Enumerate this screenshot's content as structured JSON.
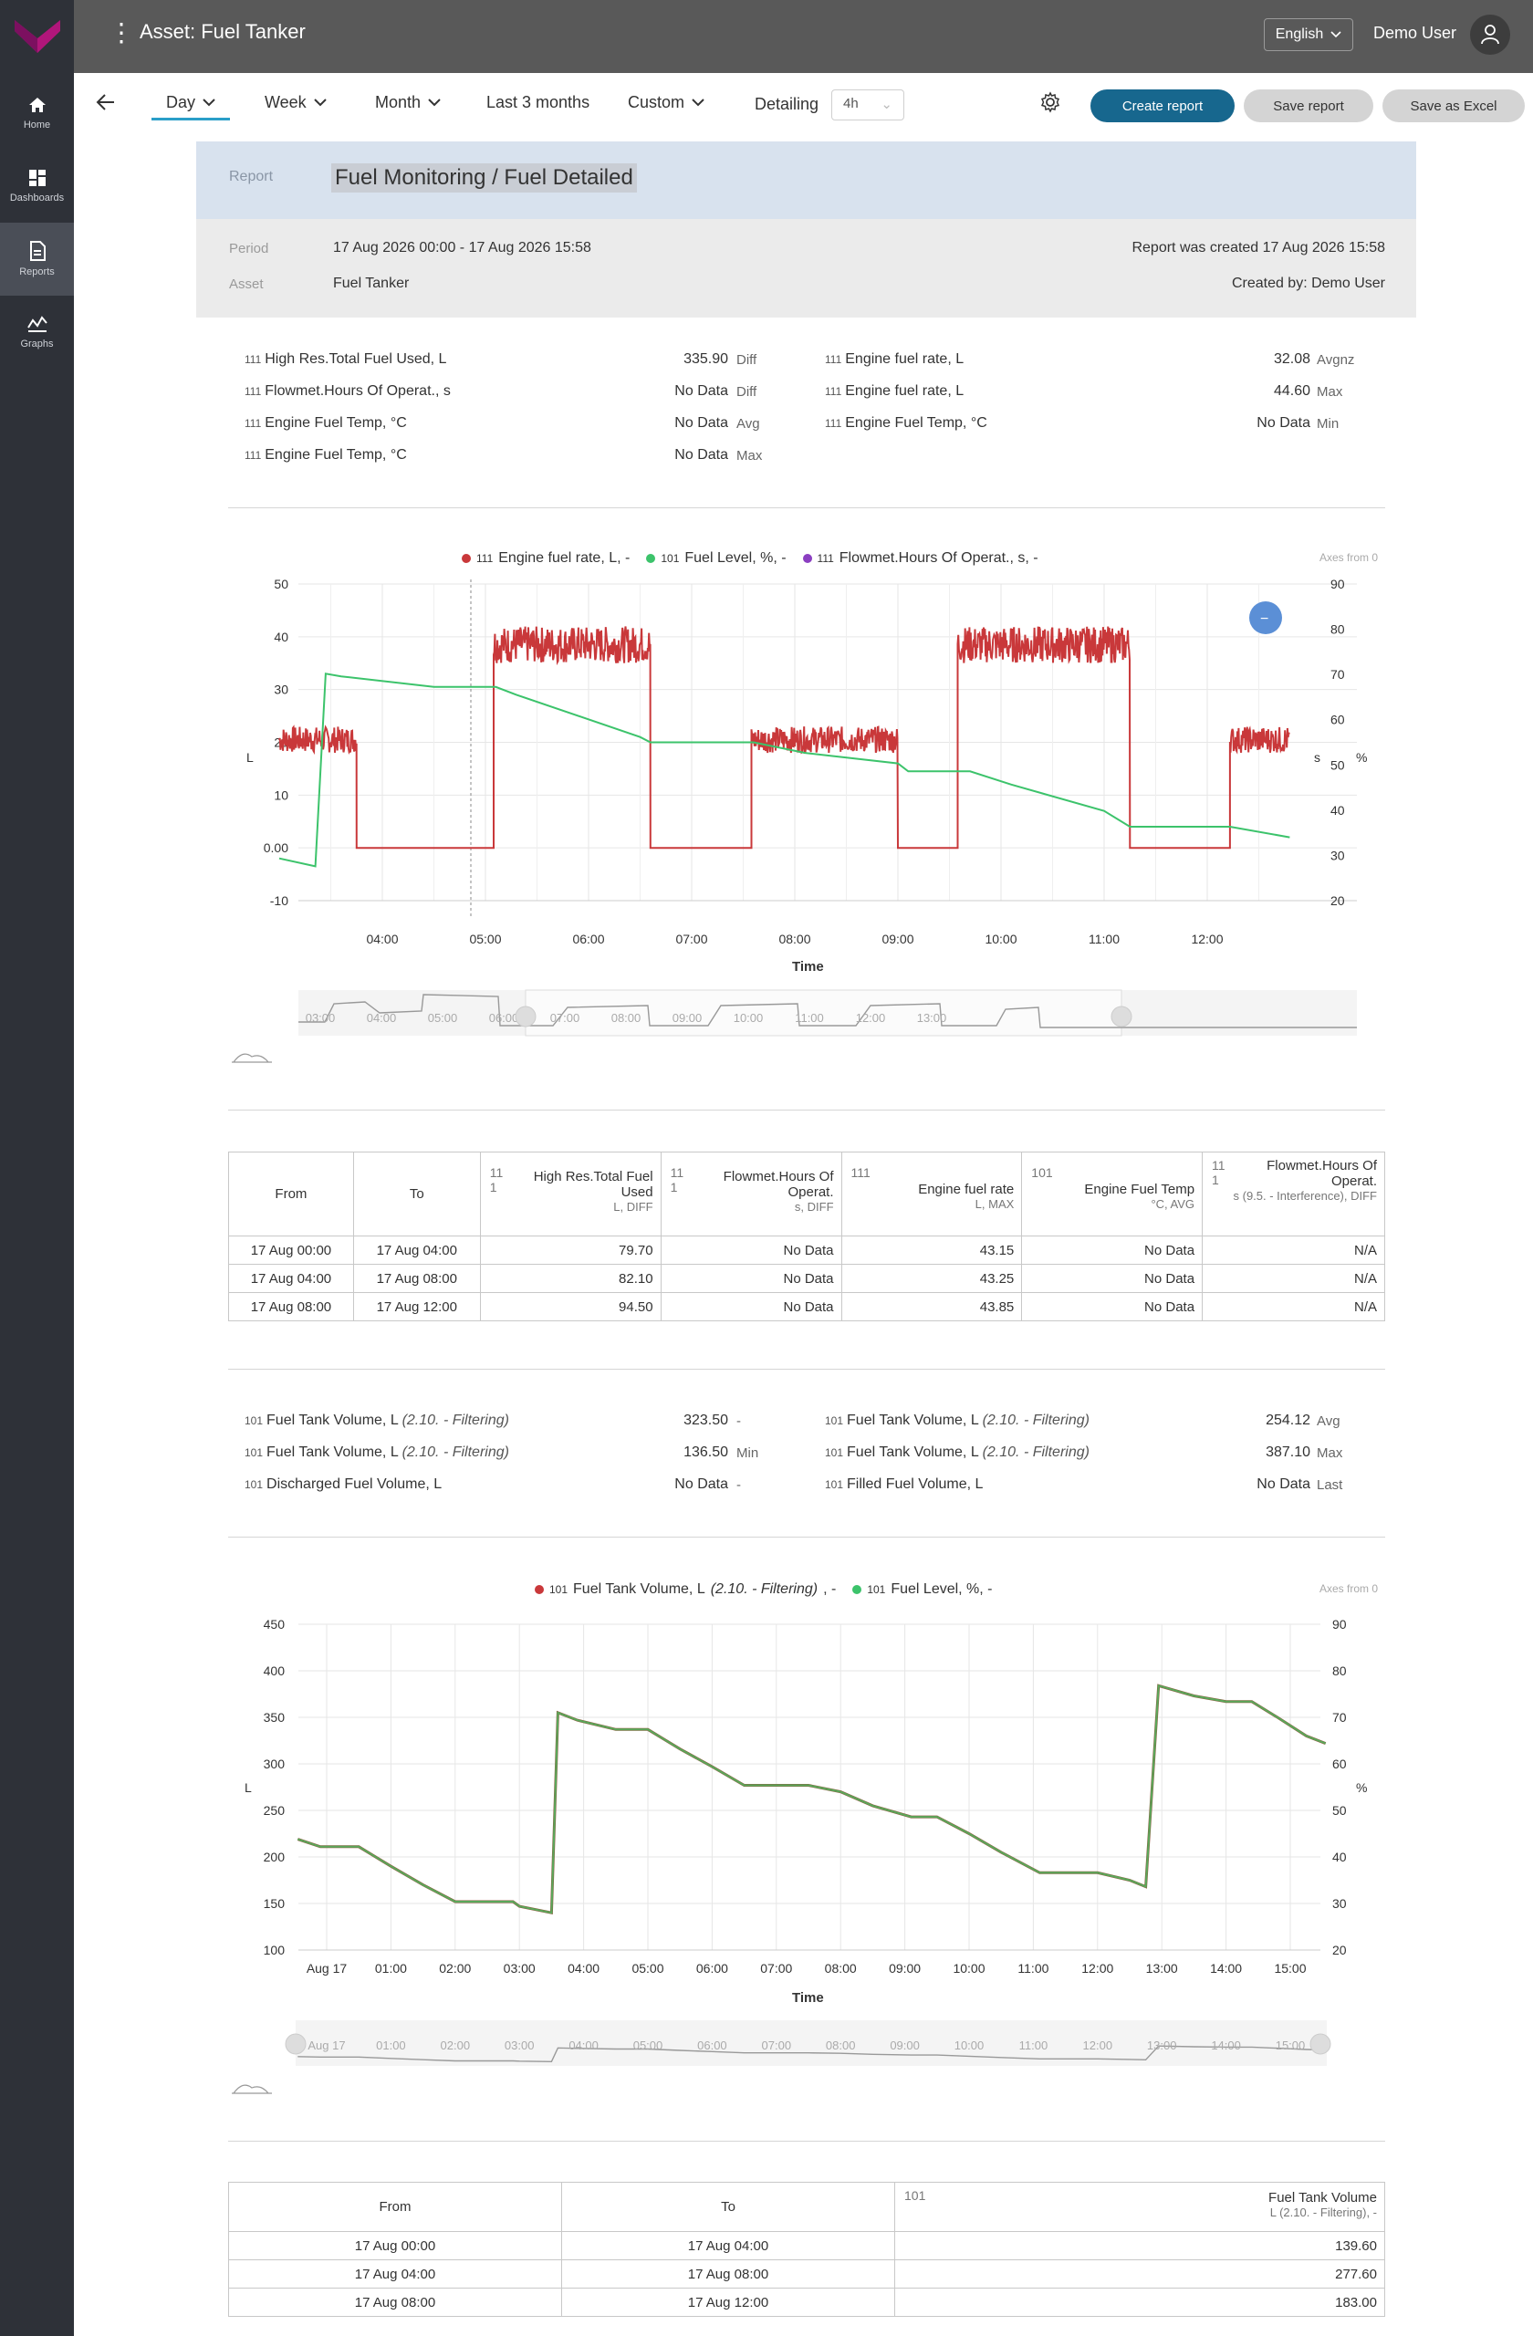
{
  "app": {
    "asset_title": "Asset: Fuel Tanker",
    "language": "English",
    "user": "Demo User"
  },
  "sidebar": {
    "items": [
      {
        "label": "Home",
        "icon": "home-icon"
      },
      {
        "label": "Dashboards",
        "icon": "dashboard-icon"
      },
      {
        "label": "Reports",
        "icon": "report-icon"
      },
      {
        "label": "Graphs",
        "icon": "graph-icon"
      }
    ],
    "active": "Reports"
  },
  "toolbar": {
    "tabs": [
      "Day",
      "Week",
      "Month",
      "Last 3 months",
      "Custom"
    ],
    "active_tab": "Day",
    "detailing_label": "Detailing",
    "detailing_value": "4h",
    "create_report": "Create report",
    "save_report": "Save report",
    "save_excel": "Save as Excel"
  },
  "report": {
    "label": "Report",
    "title": "Fuel Monitoring / Fuel Detailed",
    "period_label": "Period",
    "period_value": "17 Aug 2026 00:00 - 17 Aug 2026 15:58",
    "asset_label": "Asset",
    "asset_value": "Fuel Tanker",
    "created": "Report was created 17 Aug 2026 15:58",
    "created_by": "Created by: Demo User"
  },
  "stats1": {
    "left": [
      {
        "code": "111",
        "name": "High Res.Total Fuel Used, L",
        "value": "335.90",
        "agg": "Diff"
      },
      {
        "code": "111",
        "name": "Flowmet.Hours Of Operat., s",
        "value": "No Data",
        "agg": "Diff"
      },
      {
        "code": "111",
        "name": "Engine Fuel Temp, °C",
        "value": "No Data",
        "agg": "Avg"
      },
      {
        "code": "111",
        "name": "Engine Fuel Temp, °C",
        "value": "No Data",
        "agg": "Max"
      }
    ],
    "right": [
      {
        "code": "111",
        "name": "Engine fuel rate, L",
        "value": "32.08",
        "agg": "Avgnz"
      },
      {
        "code": "111",
        "name": "Engine fuel rate, L",
        "value": "44.60",
        "agg": "Max"
      },
      {
        "code": "111",
        "name": "Engine Fuel Temp, °C",
        "value": "No Data",
        "agg": "Min"
      }
    ]
  },
  "chart1": {
    "legend": [
      {
        "code": "111",
        "name": "Engine fuel rate, L, -",
        "color": "#c9383a"
      },
      {
        "code": "101",
        "name": "Fuel Level, %, -",
        "color": "#3cc36b"
      },
      {
        "code": "111",
        "name": "Flowmet.Hours Of Operat., s, -",
        "color": "#8b3fc1"
      }
    ],
    "axes_note": "Axes from 0",
    "left_unit": "L",
    "right_units": [
      "s",
      "%"
    ],
    "xlabel": "Time",
    "left_ticks": [
      "50",
      "40",
      "30",
      "20",
      "10",
      "0.00",
      "-10"
    ],
    "right_ticks": [
      "90",
      "80",
      "70",
      "60",
      "50",
      "40",
      "30",
      "20"
    ],
    "x_ticks": [
      "04:00",
      "05:00",
      "06:00",
      "07:00",
      "08:00",
      "09:00",
      "10:00",
      "11:00",
      "12:00"
    ],
    "nav_ticks": [
      "03:00",
      "04:00",
      "05:00",
      "06:00",
      "07:00",
      "08:00",
      "09:00",
      "10:00",
      "11:00",
      "12:00",
      "13:00"
    ],
    "collapse_btn": "−"
  },
  "table1": {
    "headers": [
      {
        "code": "",
        "name": "From",
        "unit": ""
      },
      {
        "code": "",
        "name": "To",
        "unit": ""
      },
      {
        "code": "11\n1",
        "name": "High Res.Total Fuel Used",
        "unit": "L, DIFF"
      },
      {
        "code": "11\n1",
        "name": "Flowmet.Hours Of Operat.",
        "unit": "s, DIFF"
      },
      {
        "code": "111",
        "name": "Engine fuel rate",
        "unit": "L, MAX"
      },
      {
        "code": "101",
        "name": "Engine Fuel Temp",
        "unit": "°C, AVG"
      },
      {
        "code": "11\n1",
        "name": "Flowmet.Hours Of Operat.",
        "unit": "s (9.5. - Interference), DIFF"
      }
    ],
    "rows": [
      [
        "17 Aug 00:00",
        "17 Aug 04:00",
        "79.70",
        "No Data",
        "43.15",
        "No Data",
        "N/A"
      ],
      [
        "17 Aug 04:00",
        "17 Aug 08:00",
        "82.10",
        "No Data",
        "43.25",
        "No Data",
        "N/A"
      ],
      [
        "17 Aug 08:00",
        "17 Aug 12:00",
        "94.50",
        "No Data",
        "43.85",
        "No Data",
        "N/A"
      ]
    ]
  },
  "stats2": {
    "left": [
      {
        "code": "101",
        "name": "Fuel Tank Volume, L",
        "note": "(2.10. - Filtering)",
        "value": "323.50",
        "agg": "-"
      },
      {
        "code": "101",
        "name": "Fuel Tank Volume, L",
        "note": "(2.10. - Filtering)",
        "value": "136.50",
        "agg": "Min"
      },
      {
        "code": "101",
        "name": "Discharged Fuel Volume, L",
        "note": "",
        "value": "No Data",
        "agg": "-"
      }
    ],
    "right": [
      {
        "code": "101",
        "name": "Fuel Tank Volume, L",
        "note": "(2.10. - Filtering)",
        "value": "254.12",
        "agg": "Avg"
      },
      {
        "code": "101",
        "name": "Fuel Tank Volume, L",
        "note": "(2.10. - Filtering)",
        "value": "387.10",
        "agg": "Max"
      },
      {
        "code": "101",
        "name": "Filled Fuel Volume, L",
        "note": "",
        "value": "No Data",
        "agg": "Last"
      }
    ]
  },
  "chart2": {
    "legend": [
      {
        "code": "101",
        "name": "Fuel Tank Volume, L",
        "note": "(2.10. - Filtering)",
        "suffix": ", -",
        "color": "#c9383a"
      },
      {
        "code": "101",
        "name": "Fuel Level, %, -",
        "note": "",
        "suffix": "",
        "color": "#3cc36b"
      }
    ],
    "axes_note": "Axes from 0",
    "left_unit": "L",
    "right_unit": "%",
    "xlabel": "Time",
    "left_ticks": [
      "450",
      "400",
      "350",
      "300",
      "250",
      "200",
      "150",
      "100"
    ],
    "right_ticks": [
      "90",
      "80",
      "70",
      "60",
      "50",
      "40",
      "30",
      "20"
    ],
    "x_ticks": [
      "Aug 17",
      "01:00",
      "02:00",
      "03:00",
      "04:00",
      "05:00",
      "06:00",
      "07:00",
      "08:00",
      "09:00",
      "10:00",
      "11:00",
      "12:00",
      "13:00",
      "14:00",
      "15:00"
    ]
  },
  "table2": {
    "headers": [
      {
        "code": "",
        "name": "From",
        "unit": ""
      },
      {
        "code": "",
        "name": "To",
        "unit": ""
      },
      {
        "code": "101",
        "name": "Fuel Tank Volume",
        "unit": "L (2.10. - Filtering), -"
      }
    ],
    "rows": [
      [
        "17 Aug 00:00",
        "17 Aug 04:00",
        "139.60"
      ],
      [
        "17 Aug 04:00",
        "17 Aug 08:00",
        "277.60"
      ],
      [
        "17 Aug 08:00",
        "17 Aug 12:00",
        "183.00"
      ]
    ]
  },
  "colors": {
    "accent": "#17678e",
    "rate": "#c9383a",
    "level": "#3cc36b",
    "hours": "#8b3fc1",
    "collapse_btn": "#5b8fd6"
  }
}
